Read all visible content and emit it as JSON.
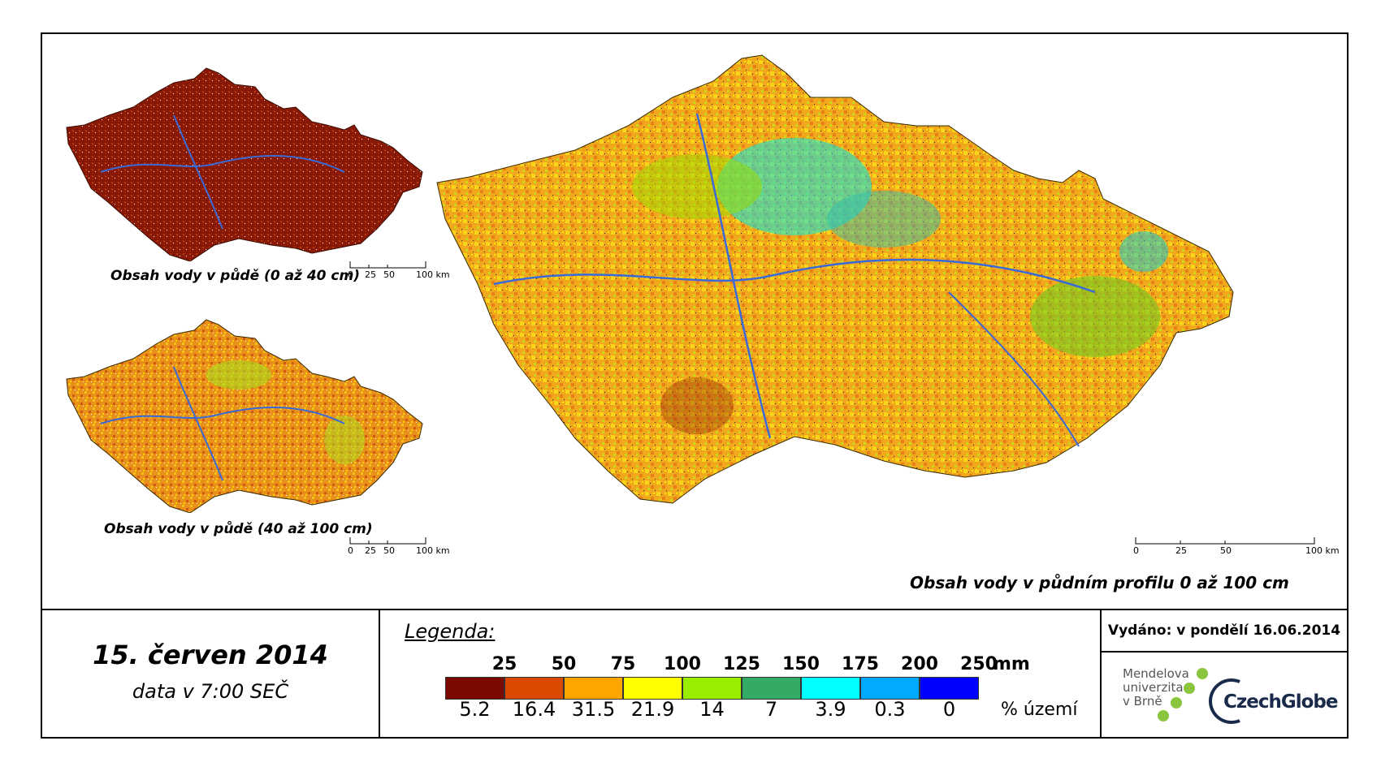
{
  "maps": {
    "top_left": {
      "caption": "Obsah vody v půdě (0 až 40 cm)"
    },
    "bottom_left": {
      "caption": "Obsah vody v půdě (40 až 100 cm)"
    },
    "main": {
      "caption": "Obsah vody v půdním profilu 0 až 100 cm"
    }
  },
  "scale_bar": {
    "labels": [
      "0",
      "25",
      "50",
      "100 km"
    ]
  },
  "date": {
    "title": "15. červen 2014",
    "subtitle": "data v 7:00 SEČ"
  },
  "legend": {
    "title": "Legenda:",
    "unit_mm": "mm",
    "unit_pct": "% území",
    "thresholds_mm": [
      "25",
      "50",
      "75",
      "100",
      "125",
      "150",
      "175",
      "200",
      "250"
    ],
    "bins": [
      {
        "color": "#7a0a00",
        "pct": "5.2"
      },
      {
        "color": "#d94a00",
        "pct": "16.4"
      },
      {
        "color": "#ffa500",
        "pct": "31.5"
      },
      {
        "color": "#ffff00",
        "pct": "21.9"
      },
      {
        "color": "#99ee00",
        "pct": "14"
      },
      {
        "color": "#33aa66",
        "pct": "7"
      },
      {
        "color": "#00ffff",
        "pct": "3.9"
      },
      {
        "color": "#00aaff",
        "pct": "0.3"
      },
      {
        "color": "#0000ff",
        "pct": "0"
      }
    ]
  },
  "issued": "Vydáno: v pondělí 16.06.2014",
  "logos": {
    "mendel": [
      "Mendelova",
      "univerzita",
      "v Brně"
    ],
    "czechglobe": "CzechGlobe"
  }
}
